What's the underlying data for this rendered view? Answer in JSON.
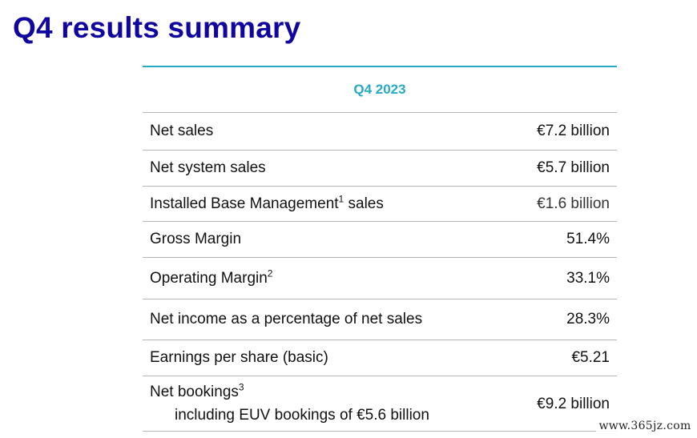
{
  "title": "Q4 results summary",
  "table": {
    "header": "Q4 2023",
    "rows": [
      {
        "label": "Net sales",
        "value": "€7.2 billion"
      },
      {
        "label": "Net system sales",
        "value": "€5.7 billion"
      },
      {
        "label": "Installed Base Management",
        "sup": "1",
        "label_suffix": " sales",
        "value": "€1.6 billion"
      },
      {
        "label": "Gross Margin",
        "value": "51.4%"
      },
      {
        "label": "Operating Margin",
        "sup": "2",
        "value": "33.1%"
      },
      {
        "label": "Net income as a percentage of net sales",
        "value": "28.3%"
      },
      {
        "label": "Earnings per share (basic)",
        "value": "€5.21"
      },
      {
        "label": "Net bookings",
        "sup": "3",
        "sublabel": "including EUV bookings of €5.6 billion",
        "value": "€9.2 billion"
      }
    ]
  },
  "watermark": "www.365jz.com",
  "colors": {
    "title": "#10069f",
    "accent": "#27a9c9",
    "rule": "#b5b5b5"
  }
}
